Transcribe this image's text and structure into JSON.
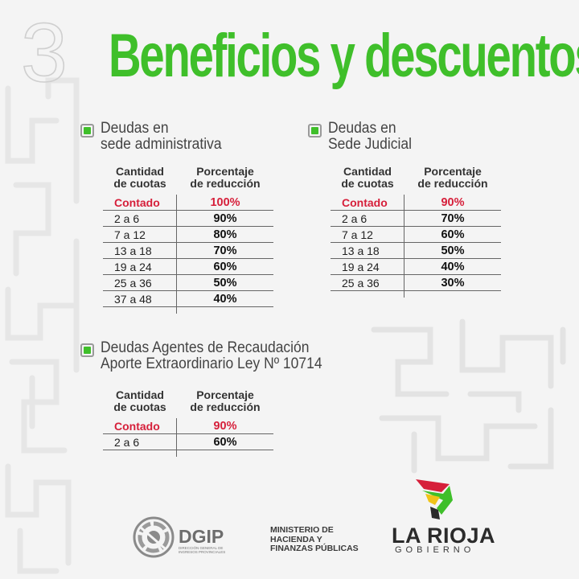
{
  "page_number": "3",
  "title": "Beneficios y descuentos",
  "sections": [
    {
      "title": "Deudas en\nsede administrativa",
      "header_col1": "Cantidad\nde cuotas",
      "header_col2": "Porcentaje\nde reducción",
      "rows": [
        {
          "cuotas": "Contado",
          "porcentaje": "100%"
        },
        {
          "cuotas": "2 a 6",
          "porcentaje": "90%"
        },
        {
          "cuotas": "7 a 12",
          "porcentaje": "80%"
        },
        {
          "cuotas": "13 a 18",
          "porcentaje": "70%"
        },
        {
          "cuotas": "19 a 24",
          "porcentaje": "60%"
        },
        {
          "cuotas": "25 a 36",
          "porcentaje": "50%"
        },
        {
          "cuotas": "37 a 48",
          "porcentaje": "40%"
        }
      ]
    },
    {
      "title": "Deudas en\nSede Judicial",
      "header_col1": "Cantidad\nde cuotas",
      "header_col2": "Porcentaje\nde reducción",
      "rows": [
        {
          "cuotas": "Contado",
          "porcentaje": "90%"
        },
        {
          "cuotas": "2 a 6",
          "porcentaje": "70%"
        },
        {
          "cuotas": "7 a 12",
          "porcentaje": "60%"
        },
        {
          "cuotas": "13 a 18",
          "porcentaje": "50%"
        },
        {
          "cuotas": "19 a 24",
          "porcentaje": "40%"
        },
        {
          "cuotas": "25 a 36",
          "porcentaje": "30%"
        }
      ]
    },
    {
      "title": "Deudas Agentes de Recaudación\nAporte Extraordinario Ley Nº 10714",
      "header_col1": "Cantidad\nde cuotas",
      "header_col2": "Porcentaje\nde reducción",
      "rows": [
        {
          "cuotas": "Contado",
          "porcentaje": "90%"
        },
        {
          "cuotas": "2 a 6",
          "porcentaje": "60%"
        }
      ]
    }
  ],
  "footer": {
    "dgip_name": "DGIP",
    "dgip_subtitle": "Dirección General de Ingresos Provinciales",
    "ministerio": "MINISTERIO DE\nHACIENDA Y\nFINANZAS PÚBLICAS",
    "larioja": "LA RIOJA",
    "gobierno": "GOBIERNO"
  },
  "colors": {
    "title_green": "#3fbf2a",
    "contado_red": "#d61f3a",
    "background": "#f4f4f4"
  },
  "icons": [
    "checkbox-bullet-icon",
    "dgip-logo-icon",
    "la-rioja-logo-icon"
  ]
}
